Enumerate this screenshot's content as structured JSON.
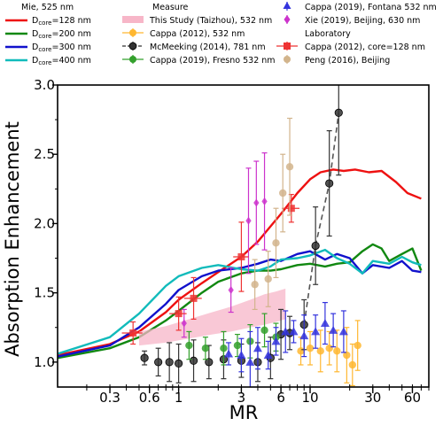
{
  "chart_data": {
    "type": "line",
    "xlabel": "MR",
    "ylabel": "Absorption Enhancement",
    "xscale": "log",
    "xlim": [
      0.12,
      80
    ],
    "ylim": [
      0.82,
      3.0
    ],
    "xticks": [
      0.3,
      0.6,
      1,
      3,
      6,
      10,
      30,
      60
    ],
    "xtick_labels": [
      "0.3",
      "0.6",
      "1",
      "3",
      "6",
      "10",
      "30",
      "60"
    ],
    "yticks": [
      1.0,
      1.5,
      2.0,
      2.5,
      3.0
    ],
    "ytick_labels": [
      "1.0",
      "1.5",
      "2.0",
      "2.5",
      "3.0"
    ],
    "legend_left": {
      "header": "Mie, 525 nm",
      "items": [
        {
          "label": "D",
          "sub": "core",
          "suffix": "=128 nm",
          "color": "#ee1111"
        },
        {
          "label": "D",
          "sub": "core",
          "suffix": "=200 nm",
          "color": "#118811"
        },
        {
          "label": "D",
          "sub": "core",
          "suffix": "=300 nm",
          "color": "#1111cc"
        },
        {
          "label": "D",
          "sub": "core",
          "suffix": "=400 nm",
          "color": "#11bbbb"
        }
      ]
    },
    "legend_mid": {
      "header": "Measure",
      "items": [
        {
          "label": "This Study (Taizhou), 532 nm",
          "color": "#f7b6c8",
          "marker": "band"
        },
        {
          "label": "Cappa (2012), 532 nm",
          "color": "#ffb730",
          "marker": "circle"
        },
        {
          "label": "McMeeking (2014), 781 nm",
          "color": "#333333",
          "marker": "circle-dash"
        },
        {
          "label": "Cappa (2019), Fresno 532 nm",
          "color": "#33a02c",
          "marker": "circle"
        }
      ]
    },
    "legend_right": {
      "items": [
        {
          "label": "Cappa (2019), Fontana 532 nm",
          "color": "#3333dd",
          "marker": "triangle"
        },
        {
          "label": "Xie (2019), Beijing, 630 nm",
          "color": "#cc33cc",
          "marker": "diamond"
        }
      ],
      "header": "Laboratory",
      "items2": [
        {
          "label": "Cappa (2012), core=128 nm",
          "color": "#ee3333",
          "marker": "square"
        },
        {
          "label": "Peng (2016), Beijing",
          "color": "#d2b48c",
          "marker": "circle"
        }
      ]
    },
    "series": [
      {
        "name": "Dcore=128 nm",
        "kind": "line",
        "color": "#ee1111",
        "x": [
          0.12,
          0.3,
          0.5,
          0.8,
          1.0,
          1.5,
          2.0,
          3.0,
          4.0,
          5.0,
          6.0,
          7.0,
          8.0,
          10,
          12,
          15,
          18,
          22,
          28,
          35,
          45,
          55,
          70
        ],
        "y": [
          1.05,
          1.13,
          1.22,
          1.36,
          1.45,
          1.57,
          1.65,
          1.76,
          1.87,
          1.98,
          2.07,
          2.15,
          2.22,
          2.32,
          2.37,
          2.39,
          2.38,
          2.39,
          2.37,
          2.38,
          2.3,
          2.22,
          2.18
        ]
      },
      {
        "name": "Dcore=200 nm",
        "kind": "line",
        "color": "#118811",
        "x": [
          0.12,
          0.3,
          0.5,
          0.8,
          1.0,
          1.5,
          2.0,
          3.0,
          4.0,
          5.0,
          6.0,
          8.0,
          10,
          13,
          16,
          20,
          25,
          30,
          35,
          40,
          50,
          60,
          70
        ],
        "y": [
          1.03,
          1.1,
          1.18,
          1.3,
          1.37,
          1.5,
          1.58,
          1.64,
          1.66,
          1.66,
          1.67,
          1.7,
          1.71,
          1.69,
          1.71,
          1.72,
          1.8,
          1.85,
          1.82,
          1.73,
          1.78,
          1.82,
          1.66
        ]
      },
      {
        "name": "Dcore=300 nm",
        "kind": "line",
        "color": "#1111cc",
        "x": [
          0.12,
          0.3,
          0.5,
          0.8,
          1.0,
          1.5,
          2.0,
          3.0,
          4.0,
          5.0,
          6.0,
          8.0,
          10,
          13,
          16,
          20,
          25,
          30,
          40,
          50,
          60,
          70
        ],
        "y": [
          1.04,
          1.12,
          1.25,
          1.42,
          1.52,
          1.62,
          1.66,
          1.68,
          1.71,
          1.74,
          1.73,
          1.78,
          1.8,
          1.74,
          1.78,
          1.75,
          1.64,
          1.7,
          1.68,
          1.73,
          1.66,
          1.65
        ]
      },
      {
        "name": "Dcore=400 nm",
        "kind": "line",
        "color": "#11bbbb",
        "x": [
          0.12,
          0.3,
          0.5,
          0.8,
          1.0,
          1.5,
          2.0,
          3.0,
          4.0,
          5.0,
          6.0,
          8.0,
          10,
          13,
          16,
          20,
          25,
          30,
          40,
          50,
          60,
          70
        ],
        "y": [
          1.06,
          1.18,
          1.35,
          1.55,
          1.62,
          1.68,
          1.7,
          1.67,
          1.66,
          1.69,
          1.74,
          1.75,
          1.77,
          1.81,
          1.75,
          1.71,
          1.64,
          1.73,
          1.71,
          1.76,
          1.72,
          1.7
        ]
      },
      {
        "name": "This Study (Taizhou), 532 nm",
        "kind": "band",
        "color": "#f7b6c8",
        "x": [
          0.5,
          0.8,
          1.2,
          1.8,
          2.5,
          3.5,
          4.5,
          5.5,
          6.5
        ],
        "lower": [
          1.12,
          1.14,
          1.17,
          1.2,
          1.22,
          1.25,
          1.27,
          1.29,
          1.31
        ],
        "upper": [
          1.22,
          1.26,
          1.31,
          1.36,
          1.4,
          1.45,
          1.49,
          1.51,
          1.53
        ]
      },
      {
        "name": "Cappa (2012), 532 nm",
        "kind": "points",
        "marker": "circle",
        "color": "#ffb730",
        "points": [
          [
            8.5,
            1.08,
            0.1
          ],
          [
            10,
            1.1,
            0.12
          ],
          [
            12,
            1.08,
            0.15
          ],
          [
            14,
            1.1,
            0.12
          ],
          [
            16,
            1.08,
            0.15
          ],
          [
            19,
            1.05,
            0.2
          ],
          [
            21,
            0.98,
            0.15
          ],
          [
            23,
            1.12,
            0.18
          ]
        ]
      },
      {
        "name": "McMeeking (2014), 781 nm",
        "kind": "points-dash",
        "marker": "circle",
        "color": "#333333",
        "points": [
          [
            0.55,
            1.03,
            0.05
          ],
          [
            0.7,
            1.0,
            0.1
          ],
          [
            0.85,
            1.0,
            0.14
          ],
          [
            1.0,
            0.99,
            0.14
          ],
          [
            1.3,
            1.01,
            0.15
          ],
          [
            1.7,
            1.0,
            0.12
          ],
          [
            2.2,
            1.02,
            0.14
          ],
          [
            3.0,
            1.01,
            0.12
          ],
          [
            4.0,
            1.0,
            0.14
          ],
          [
            5.0,
            1.03,
            0.15
          ],
          [
            6.0,
            1.2,
            0.18
          ],
          [
            7.0,
            1.21,
            0.12
          ],
          [
            9.0,
            1.27,
            0.18
          ],
          [
            11.0,
            1.84,
            0.28
          ],
          [
            14.0,
            2.29,
            0.38
          ],
          [
            16.5,
            2.8,
            0.45
          ]
        ]
      },
      {
        "name": "Cappa (2019), Fresno 532 nm",
        "kind": "points",
        "marker": "circle",
        "color": "#33a02c",
        "points": [
          [
            1.2,
            1.12,
            0.1
          ],
          [
            1.6,
            1.1,
            0.08
          ],
          [
            2.2,
            1.1,
            0.12
          ],
          [
            2.8,
            1.12,
            0.08
          ],
          [
            3.5,
            1.15,
            0.12
          ],
          [
            4.5,
            1.23,
            0.12
          ],
          [
            5.5,
            1.18,
            0.1
          ]
        ]
      },
      {
        "name": "Cappa (2019), Fontana 532 nm",
        "kind": "points",
        "marker": "triangle",
        "color": "#3333dd",
        "points": [
          [
            2.4,
            1.06,
            0.08
          ],
          [
            3.0,
            1.05,
            0.12
          ],
          [
            3.5,
            1.0,
            0.22
          ],
          [
            4.0,
            1.1,
            0.15
          ],
          [
            4.8,
            1.05,
            0.1
          ],
          [
            5.5,
            1.15,
            0.1
          ],
          [
            6.5,
            1.22,
            0.15
          ],
          [
            7.5,
            1.22,
            0.08
          ],
          [
            9,
            1.19,
            0.15
          ],
          [
            11,
            1.22,
            0.12
          ],
          [
            13,
            1.28,
            0.15
          ],
          [
            15,
            1.23,
            0.12
          ],
          [
            18,
            1.22,
            0.15
          ]
        ]
      },
      {
        "name": "Xie (2019), Beijing, 630 nm",
        "kind": "points",
        "marker": "diamond",
        "color": "#cc33cc",
        "points": [
          [
            1.1,
            1.28,
            0.1
          ],
          [
            2.5,
            1.52,
            0.16
          ],
          [
            3.4,
            2.02,
            0.38
          ],
          [
            3.9,
            2.15,
            0.3
          ],
          [
            4.5,
            2.16,
            0.35
          ]
        ]
      },
      {
        "name": "Cappa (2012), core=128 nm",
        "kind": "points",
        "marker": "square",
        "color": "#ee3333",
        "points": [
          [
            0.45,
            1.21,
            0.08
          ],
          [
            1.0,
            1.35,
            0.12
          ],
          [
            1.3,
            1.46,
            0.15
          ],
          [
            3.0,
            1.76,
            0.25
          ],
          [
            7.2,
            2.11,
            0.1
          ]
        ],
        "xerr": [
          0.08,
          0.15,
          0.2,
          0.4,
          1.1
        ]
      },
      {
        "name": "Peng (2016), Beijing",
        "kind": "points",
        "marker": "circle",
        "color": "#d2b48c",
        "points": [
          [
            3.8,
            1.56,
            0.18
          ],
          [
            4.8,
            1.6,
            0.2
          ],
          [
            5.5,
            1.86,
            0.25
          ],
          [
            6.2,
            2.22,
            0.28
          ],
          [
            7.0,
            2.41,
            0.35
          ]
        ]
      }
    ]
  }
}
